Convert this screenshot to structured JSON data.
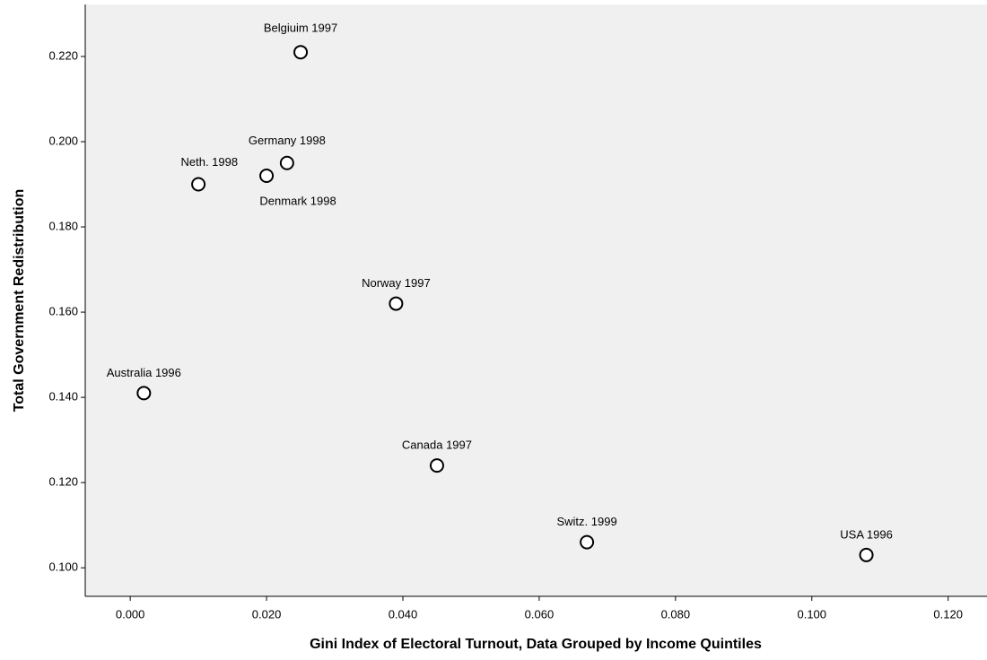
{
  "chart_data": {
    "type": "scatter",
    "xlabel": "Gini Index of Electoral Turnout, Data Grouped by Income Quintiles",
    "ylabel": "Total Government Redistribution",
    "series": [
      {
        "color": "#000000",
        "labels": [
          "Belgiuim 1997",
          "Germany 1998",
          "Denmark 1998",
          "Neth. 1998",
          "Norway 1997",
          "Australia 1996",
          "Canada 1997",
          "Switz. 1999",
          "USA 1996"
        ],
        "x": [
          0.025,
          0.023,
          0.02,
          0.01,
          0.039,
          0.002,
          0.045,
          0.067,
          0.108
        ],
        "values": [
          0.221,
          0.195,
          0.192,
          0.19,
          0.162,
          0.141,
          0.124,
          0.106,
          0.103
        ]
      }
    ],
    "xlim": [
      -0.0066,
      0.1257
    ],
    "ylim": [
      0.0933,
      0.2322
    ],
    "xticks": [
      {
        "value": 0,
        "label": "0.000"
      },
      {
        "value": 0.02,
        "label": "0.020"
      },
      {
        "value": 0.04,
        "label": "0.040"
      },
      {
        "value": 0.06,
        "label": "0.060"
      },
      {
        "value": 0.08,
        "label": "0.080"
      },
      {
        "value": 0.1,
        "label": "0.100"
      },
      {
        "value": 0.12,
        "label": "0.120"
      }
    ],
    "yticks": [
      {
        "value": 0.1,
        "label": "0.100"
      },
      {
        "value": 0.12,
        "label": "0.120"
      },
      {
        "value": 0.14,
        "label": "0.140"
      },
      {
        "value": 0.16,
        "label": "0.160"
      },
      {
        "value": 0.18,
        "label": "0.180"
      },
      {
        "value": 0.2,
        "label": "0.200"
      },
      {
        "value": 0.22,
        "label": "0.220"
      }
    ],
    "background": "#f0f0f0"
  }
}
